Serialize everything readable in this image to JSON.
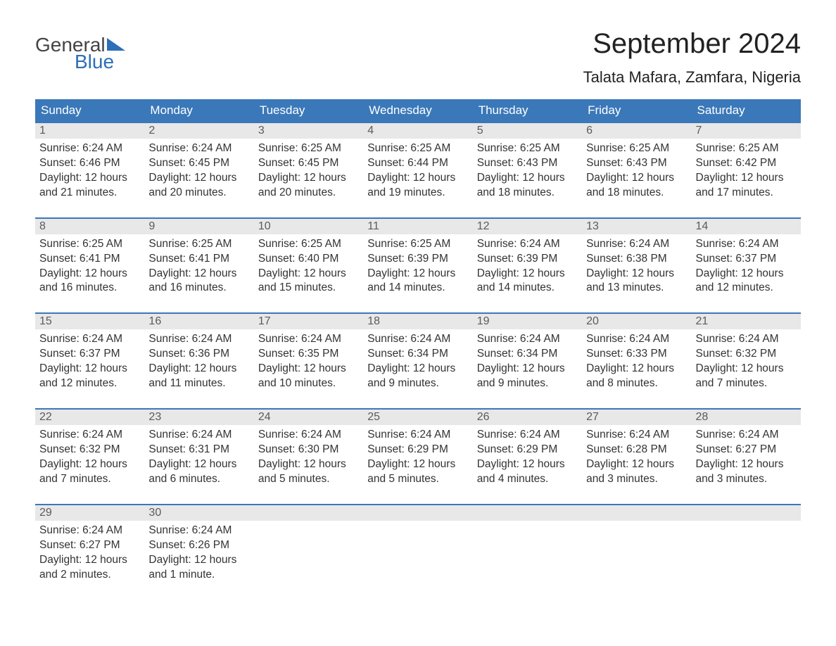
{
  "logo": {
    "word1": "General",
    "word2": "Blue"
  },
  "title": "September 2024",
  "location": "Talata Mafara, Zamfara, Nigeria",
  "colors": {
    "header_bg": "#3a78b9",
    "header_text": "#ffffff",
    "daynum_bg": "#e8e8e8",
    "daynum_text": "#5b5b5b",
    "border": "#3a78b9",
    "body_text": "#333333",
    "logo_blue": "#2d6fb8"
  },
  "day_names": [
    "Sunday",
    "Monday",
    "Tuesday",
    "Wednesday",
    "Thursday",
    "Friday",
    "Saturday"
  ],
  "weeks": [
    [
      {
        "n": "1",
        "sunrise": "6:24 AM",
        "sunset": "6:46 PM",
        "daylight": "12 hours and 21 minutes."
      },
      {
        "n": "2",
        "sunrise": "6:24 AM",
        "sunset": "6:45 PM",
        "daylight": "12 hours and 20 minutes."
      },
      {
        "n": "3",
        "sunrise": "6:25 AM",
        "sunset": "6:45 PM",
        "daylight": "12 hours and 20 minutes."
      },
      {
        "n": "4",
        "sunrise": "6:25 AM",
        "sunset": "6:44 PM",
        "daylight": "12 hours and 19 minutes."
      },
      {
        "n": "5",
        "sunrise": "6:25 AM",
        "sunset": "6:43 PM",
        "daylight": "12 hours and 18 minutes."
      },
      {
        "n": "6",
        "sunrise": "6:25 AM",
        "sunset": "6:43 PM",
        "daylight": "12 hours and 18 minutes."
      },
      {
        "n": "7",
        "sunrise": "6:25 AM",
        "sunset": "6:42 PM",
        "daylight": "12 hours and 17 minutes."
      }
    ],
    [
      {
        "n": "8",
        "sunrise": "6:25 AM",
        "sunset": "6:41 PM",
        "daylight": "12 hours and 16 minutes."
      },
      {
        "n": "9",
        "sunrise": "6:25 AM",
        "sunset": "6:41 PM",
        "daylight": "12 hours and 16 minutes."
      },
      {
        "n": "10",
        "sunrise": "6:25 AM",
        "sunset": "6:40 PM",
        "daylight": "12 hours and 15 minutes."
      },
      {
        "n": "11",
        "sunrise": "6:25 AM",
        "sunset": "6:39 PM",
        "daylight": "12 hours and 14 minutes."
      },
      {
        "n": "12",
        "sunrise": "6:24 AM",
        "sunset": "6:39 PM",
        "daylight": "12 hours and 14 minutes."
      },
      {
        "n": "13",
        "sunrise": "6:24 AM",
        "sunset": "6:38 PM",
        "daylight": "12 hours and 13 minutes."
      },
      {
        "n": "14",
        "sunrise": "6:24 AM",
        "sunset": "6:37 PM",
        "daylight": "12 hours and 12 minutes."
      }
    ],
    [
      {
        "n": "15",
        "sunrise": "6:24 AM",
        "sunset": "6:37 PM",
        "daylight": "12 hours and 12 minutes."
      },
      {
        "n": "16",
        "sunrise": "6:24 AM",
        "sunset": "6:36 PM",
        "daylight": "12 hours and 11 minutes."
      },
      {
        "n": "17",
        "sunrise": "6:24 AM",
        "sunset": "6:35 PM",
        "daylight": "12 hours and 10 minutes."
      },
      {
        "n": "18",
        "sunrise": "6:24 AM",
        "sunset": "6:34 PM",
        "daylight": "12 hours and 9 minutes."
      },
      {
        "n": "19",
        "sunrise": "6:24 AM",
        "sunset": "6:34 PM",
        "daylight": "12 hours and 9 minutes."
      },
      {
        "n": "20",
        "sunrise": "6:24 AM",
        "sunset": "6:33 PM",
        "daylight": "12 hours and 8 minutes."
      },
      {
        "n": "21",
        "sunrise": "6:24 AM",
        "sunset": "6:32 PM",
        "daylight": "12 hours and 7 minutes."
      }
    ],
    [
      {
        "n": "22",
        "sunrise": "6:24 AM",
        "sunset": "6:32 PM",
        "daylight": "12 hours and 7 minutes."
      },
      {
        "n": "23",
        "sunrise": "6:24 AM",
        "sunset": "6:31 PM",
        "daylight": "12 hours and 6 minutes."
      },
      {
        "n": "24",
        "sunrise": "6:24 AM",
        "sunset": "6:30 PM",
        "daylight": "12 hours and 5 minutes."
      },
      {
        "n": "25",
        "sunrise": "6:24 AM",
        "sunset": "6:29 PM",
        "daylight": "12 hours and 5 minutes."
      },
      {
        "n": "26",
        "sunrise": "6:24 AM",
        "sunset": "6:29 PM",
        "daylight": "12 hours and 4 minutes."
      },
      {
        "n": "27",
        "sunrise": "6:24 AM",
        "sunset": "6:28 PM",
        "daylight": "12 hours and 3 minutes."
      },
      {
        "n": "28",
        "sunrise": "6:24 AM",
        "sunset": "6:27 PM",
        "daylight": "12 hours and 3 minutes."
      }
    ],
    [
      {
        "n": "29",
        "sunrise": "6:24 AM",
        "sunset": "6:27 PM",
        "daylight": "12 hours and 2 minutes."
      },
      {
        "n": "30",
        "sunrise": "6:24 AM",
        "sunset": "6:26 PM",
        "daylight": "12 hours and 1 minute."
      },
      {
        "empty": true
      },
      {
        "empty": true
      },
      {
        "empty": true
      },
      {
        "empty": true
      },
      {
        "empty": true
      }
    ]
  ],
  "labels": {
    "sunrise": "Sunrise: ",
    "sunset": "Sunset: ",
    "daylight": "Daylight: "
  }
}
